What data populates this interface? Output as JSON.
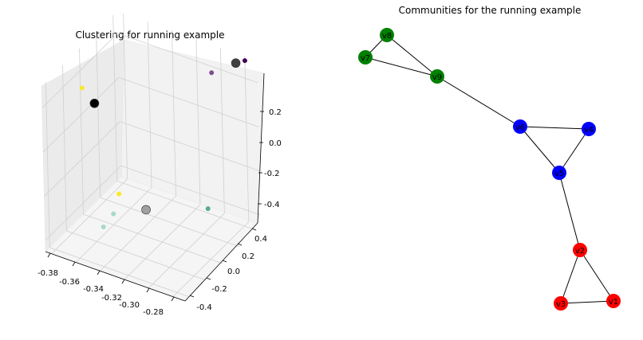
{
  "chart_data": [
    {
      "type": "scatter",
      "projection": "3d",
      "title": "Clustering for running example",
      "grid": true,
      "axes": {
        "x": {
          "range": [
            -0.385,
            -0.27
          ],
          "ticks": [
            "-0.38",
            "-0.36",
            "-0.34",
            "-0.32",
            "-0.30",
            "-0.28"
          ]
        },
        "y": {
          "range": [
            -0.45,
            0.45
          ],
          "ticks": [
            "-0.4",
            "-0.2",
            "0.0",
            "0.2",
            "0.4"
          ]
        },
        "z": {
          "range": [
            -0.45,
            0.3
          ],
          "ticks": [
            "-0.4",
            "-0.2",
            "0.0",
            "0.2"
          ]
        }
      },
      "points": [
        {
          "x": -0.28,
          "y": 0.45,
          "z": 0.28,
          "color": "#440154"
        },
        {
          "x": -0.29,
          "y": 0.2,
          "z": 0.3,
          "color": "#7e4e91"
        },
        {
          "x": -0.284,
          "y": 0.4,
          "z": 0.28,
          "color": "#404040",
          "centroid": true
        },
        {
          "x": -0.38,
          "y": -0.05,
          "z": 0.15,
          "color": "#fde725"
        },
        {
          "x": -0.37,
          "y": -0.05,
          "z": 0.1,
          "color": "#000000",
          "centroid": true
        },
        {
          "x": -0.355,
          "y": 0.0,
          "z": -0.3,
          "color": "#fde725"
        },
        {
          "x": -0.36,
          "y": 0.0,
          "z": -0.4,
          "color": "#a7d9c8"
        },
        {
          "x": -0.365,
          "y": -0.05,
          "z": -0.45,
          "color": "#a7d9c8"
        },
        {
          "x": -0.34,
          "y": 0.1,
          "z": -0.38,
          "color": "#a0a0a0",
          "centroid": true
        },
        {
          "x": -0.31,
          "y": 0.4,
          "z": -0.43,
          "color": "#5aaa9a"
        }
      ]
    },
    {
      "type": "network",
      "title": "Communities for the running example",
      "nodes": [
        {
          "id": "v1",
          "color": "#ff0000"
        },
        {
          "id": "v2",
          "color": "#ff0000"
        },
        {
          "id": "v3",
          "color": "#ff0000"
        },
        {
          "id": "v4",
          "color": "#0000ff"
        },
        {
          "id": "v5",
          "color": "#0000ff"
        },
        {
          "id": "v6",
          "color": "#0000ff"
        },
        {
          "id": "v7",
          "color": "#008000"
        },
        {
          "id": "v8",
          "color": "#008000"
        },
        {
          "id": "v9",
          "color": "#008000"
        }
      ],
      "edges": [
        [
          "v8",
          "v7"
        ],
        [
          "v8",
          "v9"
        ],
        [
          "v7",
          "v9"
        ],
        [
          "v9",
          "v6"
        ],
        [
          "v6",
          "v4"
        ],
        [
          "v6",
          "v5"
        ],
        [
          "v4",
          "v5"
        ],
        [
          "v5",
          "v2"
        ],
        [
          "v2",
          "v3"
        ],
        [
          "v2",
          "v1"
        ],
        [
          "v3",
          "v1"
        ]
      ]
    }
  ]
}
